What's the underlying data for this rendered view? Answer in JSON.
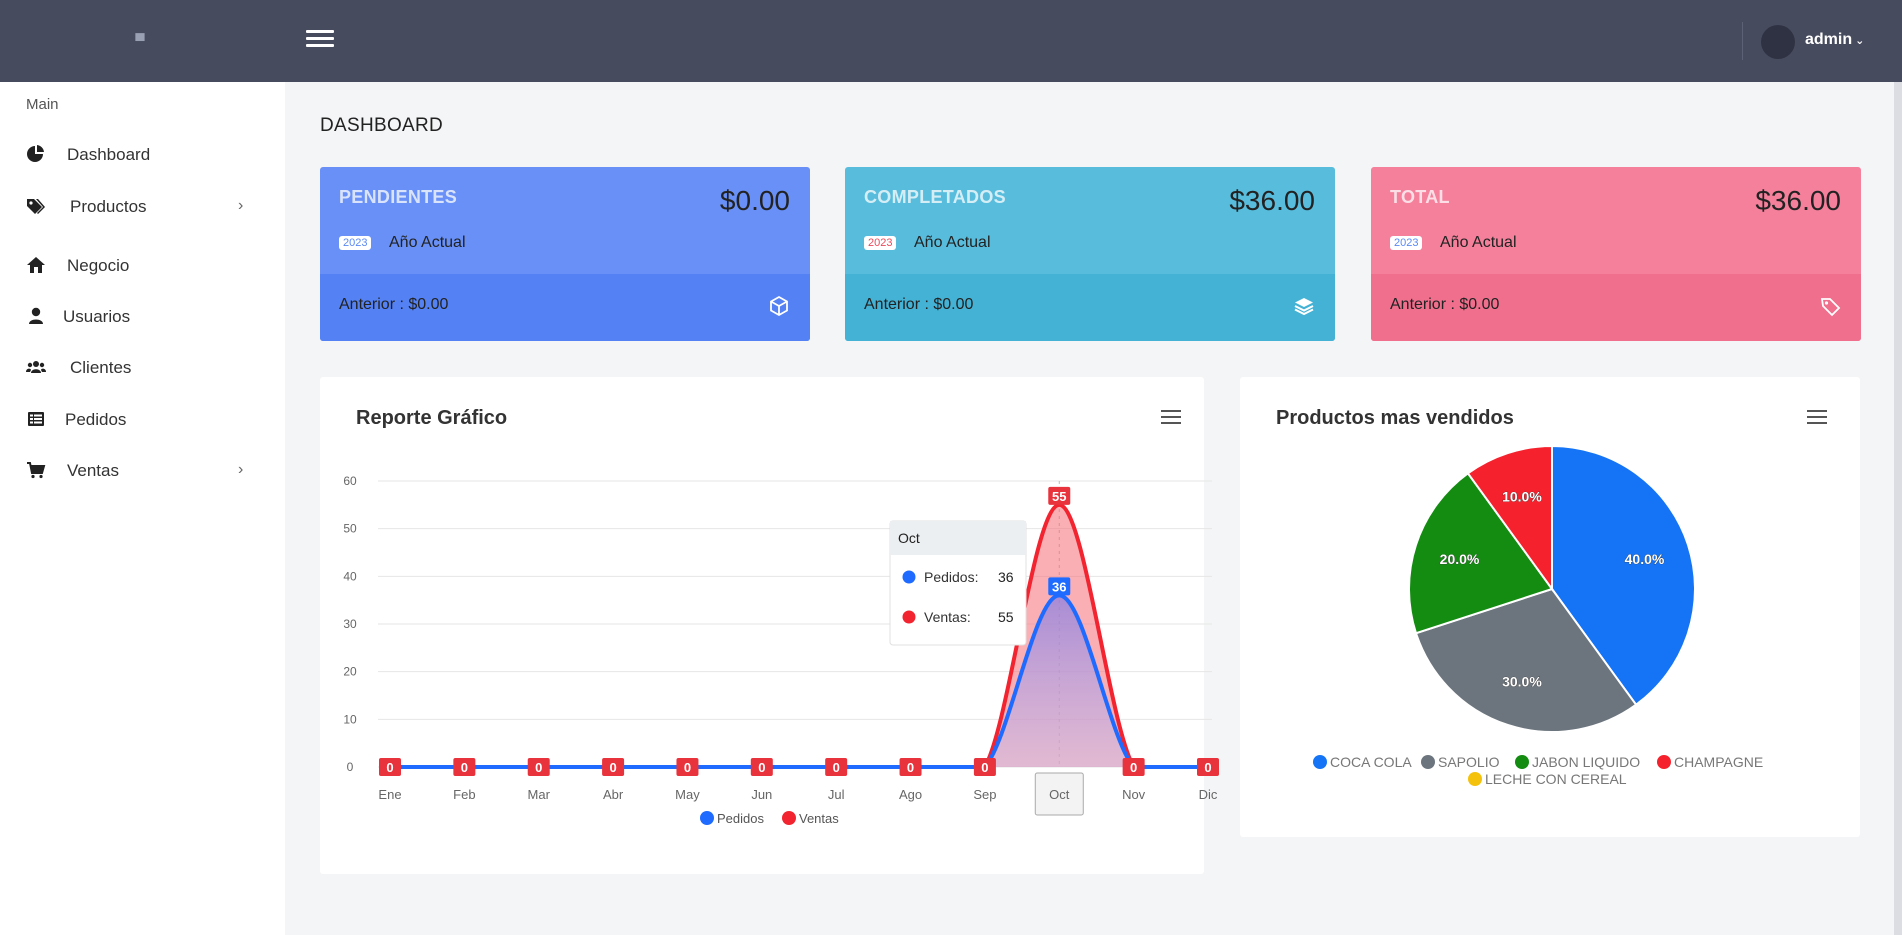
{
  "topbar": {
    "user": "admin",
    "caret": "⌄"
  },
  "sidebar": {
    "section": "Main",
    "items": [
      {
        "label": "Dashboard",
        "icon": "chart-pie-icon",
        "submenu": false
      },
      {
        "label": "Productos",
        "icon": "tags-icon",
        "submenu": true
      },
      {
        "label": "Negocio",
        "icon": "home-icon",
        "submenu": false
      },
      {
        "label": "Usuarios",
        "icon": "user-icon",
        "submenu": false
      },
      {
        "label": "Clientes",
        "icon": "users-icon",
        "submenu": false
      },
      {
        "label": "Pedidos",
        "icon": "list-icon",
        "submenu": false
      },
      {
        "label": "Ventas",
        "icon": "cart-icon",
        "submenu": true
      }
    ]
  },
  "page": {
    "title": "DASHBOARD"
  },
  "cards": [
    {
      "title": "PENDIENTES",
      "amount": "$0.00",
      "badge": "2023",
      "subtitle": "Año Actual",
      "footer": "Anterior : $0.00",
      "icon": "cube-icon",
      "color": "#6890f6",
      "footer_color": "#5481f4",
      "badge_color": "#5b8af5"
    },
    {
      "title": "COMPLETADOS",
      "amount": "$36.00",
      "badge": "2023",
      "subtitle": "Año Actual",
      "footer": "Anterior : $0.00",
      "icon": "layers-icon",
      "color": "#58bddc",
      "footer_color": "#43b2d5",
      "badge_color": "#e84c5b"
    },
    {
      "title": "TOTAL",
      "amount": "$36.00",
      "badge": "2023",
      "subtitle": "Año Actual",
      "footer": "Anterior : $0.00",
      "icon": "tag-icon",
      "color": "#f4809b",
      "footer_color": "#ef6f8d",
      "badge_color": "#5b8af5"
    }
  ],
  "line_panel": {
    "title": "Reporte Gráfico"
  },
  "pie_panel": {
    "title": "Productos mas vendidos"
  },
  "tooltip": {
    "title": "Oct",
    "rows": [
      {
        "label": "Pedidos:",
        "value": "36"
      },
      {
        "label": "Ventas:",
        "value": "55"
      }
    ]
  },
  "chart_data": [
    {
      "type": "area",
      "title": "Reporte Gráfico",
      "categories": [
        "Ene",
        "Feb",
        "Mar",
        "Abr",
        "May",
        "Jun",
        "Jul",
        "Ago",
        "Sep",
        "Oct",
        "Nov",
        "Dic"
      ],
      "series": [
        {
          "name": "Pedidos",
          "color": "#1f6bff",
          "values": [
            0,
            0,
            0,
            0,
            0,
            0,
            0,
            0,
            0,
            36,
            0,
            0
          ]
        },
        {
          "name": "Ventas",
          "color": "#f2242f",
          "values": [
            0,
            0,
            0,
            0,
            0,
            0,
            0,
            0,
            0,
            55,
            0,
            0
          ]
        }
      ],
      "yticks": [
        0,
        10,
        20,
        30,
        40,
        50,
        60
      ],
      "ylim": [
        0,
        60
      ],
      "grid": true,
      "legend": "bottom",
      "highlighted_category": "Oct"
    },
    {
      "type": "pie",
      "title": "Productos mas vendidos",
      "slices": [
        {
          "name": "COCA COLA",
          "value": 40.0,
          "label": "40.0%",
          "color": "#1574f5"
        },
        {
          "name": "SAPOLIO",
          "value": 30.0,
          "label": "30.0%",
          "color": "#6c757d"
        },
        {
          "name": "JABON LIQUIDO",
          "value": 20.0,
          "label": "20.0%",
          "color": "#148c12"
        },
        {
          "name": "CHAMPAGNE",
          "value": 10.0,
          "label": "10.0%",
          "color": "#f5222d"
        },
        {
          "name": "LECHE CON CEREAL",
          "value": 0.0,
          "label": "",
          "color": "#f4c20d"
        }
      ],
      "legend": "bottom"
    }
  ]
}
